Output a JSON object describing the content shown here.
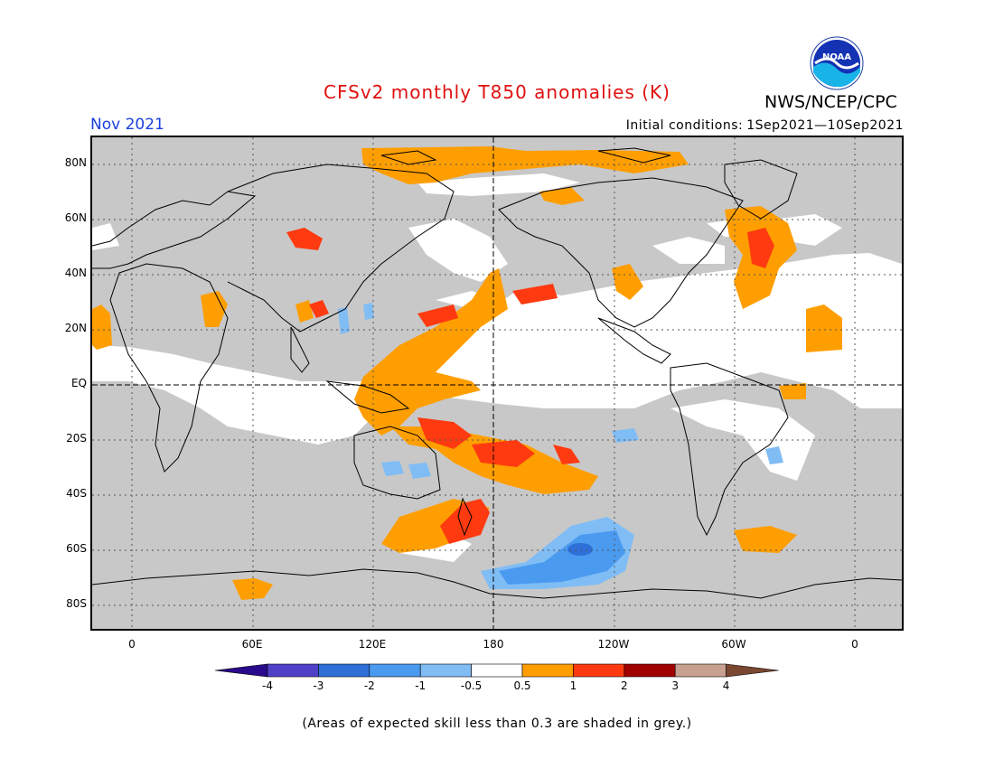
{
  "title": "CFSv2 monthly T850 anomalies (K)",
  "agency": "NWS/NCEP/CPC",
  "logo_text": "NOAA",
  "period": "Nov 2021",
  "initial_conditions_label": "Initial conditions:",
  "initial_conditions_value": "1Sep2021—10Sep2021",
  "lat_labels": [
    "80N",
    "60N",
    "40N",
    "20N",
    "EQ",
    "20S",
    "40S",
    "60S",
    "80S"
  ],
  "lon_labels": [
    "0",
    "60E",
    "120E",
    "180",
    "120W",
    "60W",
    "0"
  ],
  "colorbar": {
    "ticks": [
      "-4",
      "-3",
      "-2",
      "-1",
      "-0.5",
      "0.5",
      "1",
      "2",
      "3",
      "4"
    ],
    "colors": [
      "#2a0a8c",
      "#5040c8",
      "#2e6fd8",
      "#4a9af0",
      "#80bdf5",
      "#ffffff",
      "#ff9e00",
      "#ff3a10",
      "#a00000",
      "#c8a090",
      "#7a4830"
    ]
  },
  "note": "(Areas of expected skill less than 0.3 are shaded in grey.)",
  "colors": {
    "skill_mask": "#c8c8c8",
    "neutral": "#ffffff",
    "warm1": "#ff9e00",
    "warm2": "#ff3a10",
    "cool1": "#80bdf5",
    "cool2": "#4a9af0",
    "cool3": "#2e6fd8"
  }
}
